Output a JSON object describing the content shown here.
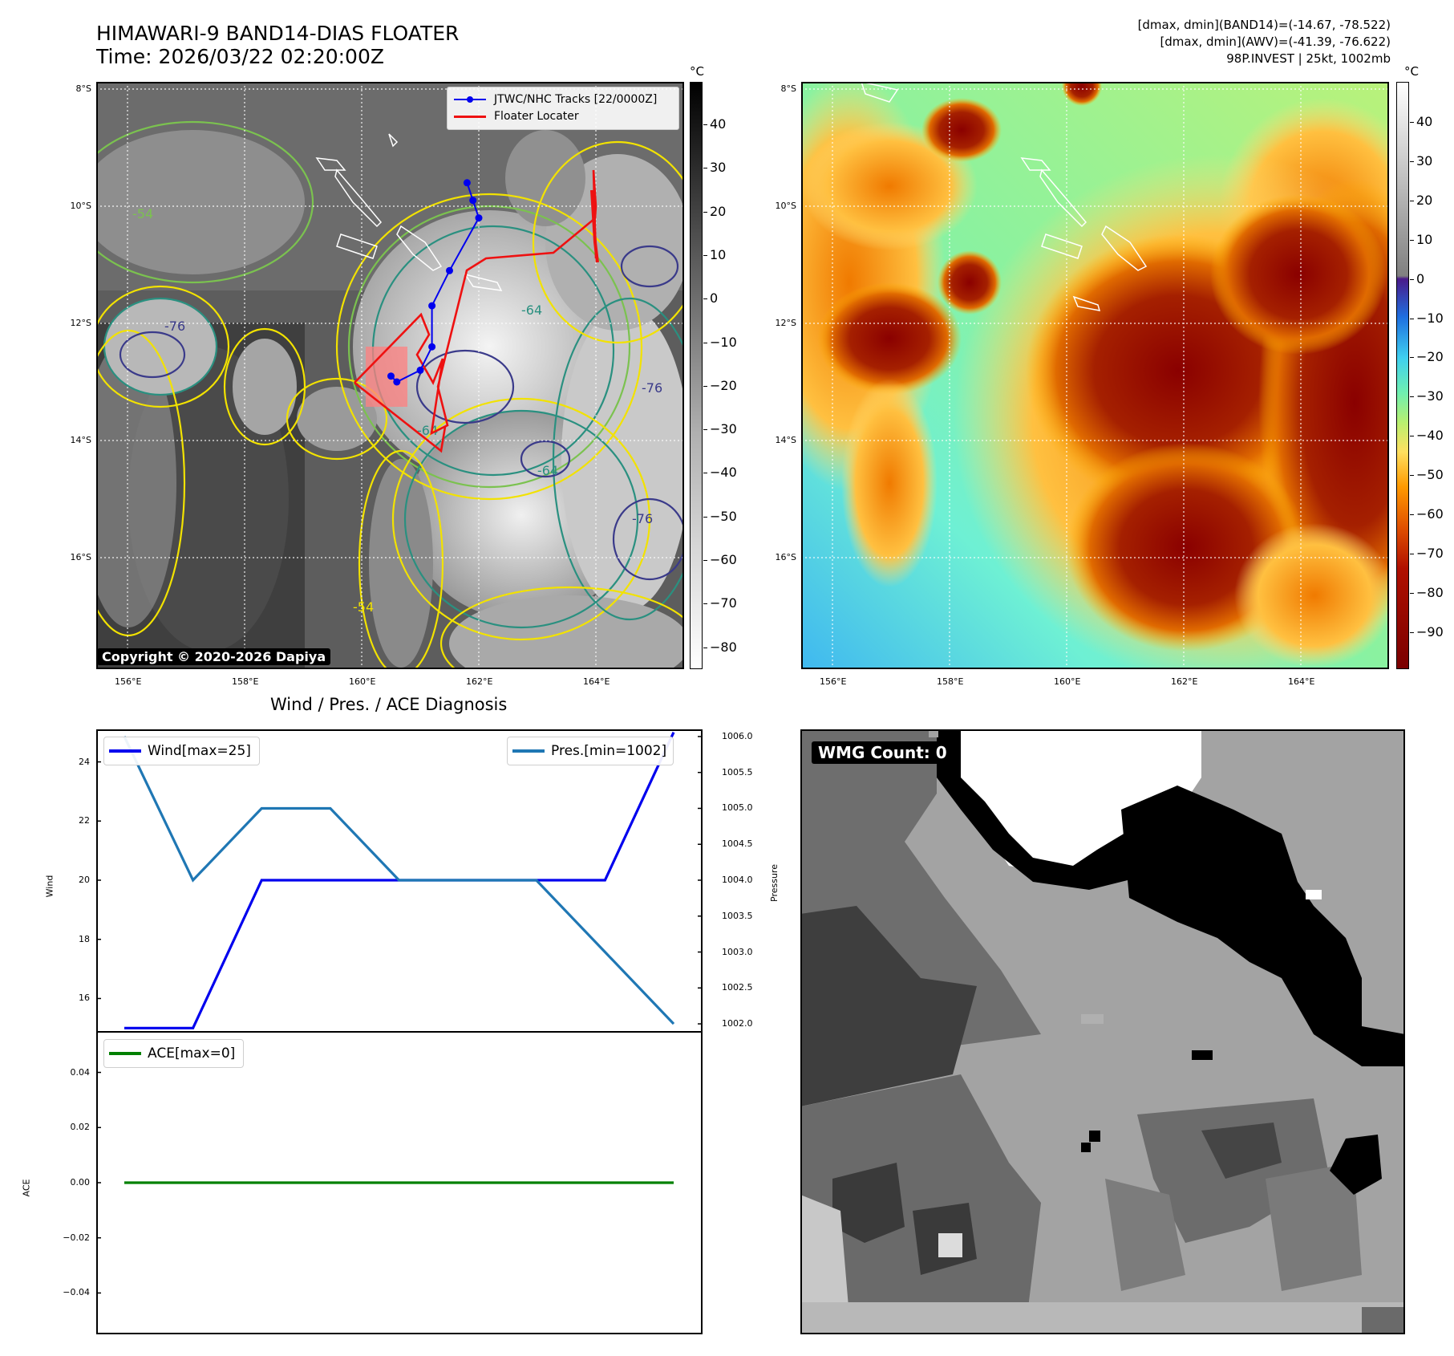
{
  "header": {
    "title_line1": "HIMAWARI-9 BAND14-DIAS FLOATER",
    "title_line2": "Time: 2026/03/22 02:20:00Z",
    "info_line1": "[dmax, dmin](BAND14)=(-14.67, -78.522)",
    "info_line2": "[dmax, dmin](AWV)=(-41.39, -76.622)",
    "info_line3": "98P.INVEST | 25kt, 1002mb"
  },
  "map_left": {
    "lon_ticks": [
      "156°E",
      "158°E",
      "160°E",
      "162°E",
      "164°E"
    ],
    "lat_ticks": [
      "8°S",
      "10°S",
      "12°S",
      "14°S",
      "16°S"
    ],
    "legend": {
      "tracks_label": "JTWC/NHC Tracks [22/0000Z]",
      "locater_label": "Floater Locater"
    },
    "contour_labels": [
      "-54",
      "-64",
      "-76",
      "-64",
      "-76",
      "-76",
      "-64",
      "-54"
    ],
    "copyright": "Copyright © 2020-2026 Dapiya",
    "colorbar_unit": "°C",
    "colorbar_ticks": [
      "40",
      "30",
      "20",
      "10",
      "0",
      "−10",
      "−20",
      "−30",
      "−40",
      "−50",
      "−60",
      "−70",
      "−80"
    ],
    "track_points": [
      {
        "lon": 161.8,
        "lat": -9.6
      },
      {
        "lon": 161.9,
        "lat": -9.9
      },
      {
        "lon": 162.0,
        "lat": -10.2
      },
      {
        "lon": 161.5,
        "lat": -11.1
      },
      {
        "lon": 161.2,
        "lat": -11.7
      },
      {
        "lon": 161.2,
        "lat": -12.4
      },
      {
        "lon": 161.0,
        "lat": -12.8
      },
      {
        "lon": 160.6,
        "lat": -13.0
      },
      {
        "lon": 160.5,
        "lat": -12.9
      }
    ]
  },
  "map_right": {
    "lon_ticks": [
      "156°E",
      "158°E",
      "160°E",
      "162°E",
      "164°E"
    ],
    "lat_ticks": [
      "8°S",
      "10°S",
      "12°S",
      "14°S",
      "16°S"
    ],
    "colorbar_unit": "°C",
    "colorbar_ticks": [
      "40",
      "30",
      "20",
      "10",
      "0",
      "−10",
      "−20",
      "−30",
      "−40",
      "−50",
      "−60",
      "−70",
      "−80",
      "−90"
    ]
  },
  "diagnosis": {
    "title": "Wind / Pres. / ACE Diagnosis",
    "wind_label": "Wind",
    "pressure_label": "Pressure",
    "ace_label": "ACE",
    "wind_legend": "Wind[max=25]",
    "pres_legend": "Pres.[min=1002]",
    "ace_legend": "ACE[max=0]",
    "wind_ticks": [
      "24",
      "22",
      "20",
      "18",
      "16"
    ],
    "pres_ticks": [
      "1006.0",
      "1005.5",
      "1005.0",
      "1004.5",
      "1004.0",
      "1003.5",
      "1003.0",
      "1002.5",
      "1002.0"
    ],
    "ace_ticks": [
      "0.04",
      "0.02",
      "0.00",
      "−0.02",
      "−0.04"
    ]
  },
  "chart_data": [
    {
      "type": "line",
      "title": "Wind / Pres. / ACE Diagnosis",
      "ylabel": "Wind",
      "ylim": [
        14.9,
        25.1
      ],
      "series": [
        {
          "name": "Wind[max=25]",
          "color": "#0000ee",
          "values": [
            15,
            15,
            20,
            20,
            20,
            20,
            20,
            20,
            25
          ]
        }
      ]
    },
    {
      "type": "line",
      "ylabel": "Pressure",
      "ylim": [
        1001.9,
        1006.1
      ],
      "series": [
        {
          "name": "Pres.[min=1002]",
          "color": "#1f77b4",
          "values": [
            1006,
            1004,
            1005,
            1005,
            1004,
            1004,
            1004,
            1003,
            1002
          ]
        }
      ]
    },
    {
      "type": "line",
      "ylabel": "ACE",
      "ylim": [
        -0.055,
        0.055
      ],
      "series": [
        {
          "name": "ACE[max=0]",
          "color": "#008000",
          "values": [
            0,
            0,
            0,
            0,
            0,
            0,
            0,
            0,
            0
          ]
        }
      ]
    }
  ],
  "wmg": {
    "count_label": "WMG Count: 0"
  }
}
